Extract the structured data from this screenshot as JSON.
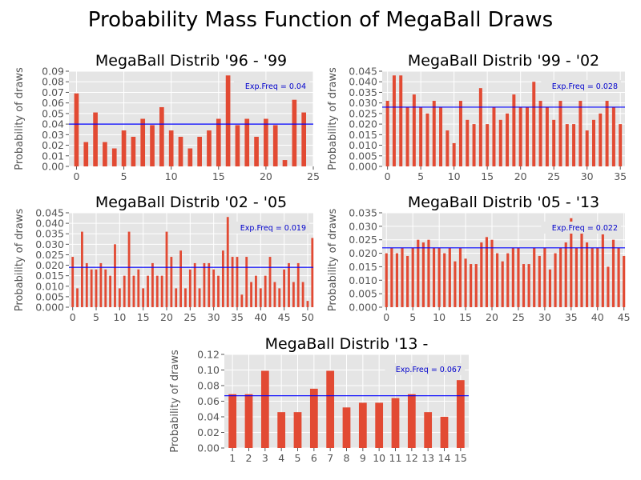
{
  "figure": {
    "title": "Probability Mass Function of MegaBall Draws"
  },
  "colors": {
    "bar": "#e24a33",
    "expected_line": "#0000ff",
    "background": "#e5e5e5",
    "grid": "#ffffff"
  },
  "chart_data": [
    {
      "type": "bar",
      "title": "MegaBall Distrib '96 - '99",
      "ylabel": "Probability of draws",
      "xlabel": "",
      "x": [
        0,
        1,
        2,
        3,
        4,
        5,
        6,
        7,
        8,
        9,
        10,
        11,
        12,
        13,
        14,
        15,
        16,
        17,
        18,
        19,
        20,
        21,
        22,
        23,
        24,
        25
      ],
      "values": [
        0.069,
        0.023,
        0.051,
        0.023,
        0.017,
        0.034,
        0.028,
        0.045,
        0.039,
        0.056,
        0.034,
        0.028,
        0.017,
        0.028,
        0.034,
        0.045,
        0.086,
        0.039,
        0.045,
        0.028,
        0.045,
        0.039,
        0.006,
        0.063,
        0.051,
        0
      ],
      "xlim": [
        -0.8,
        25
      ],
      "ylim": [
        0,
        0.09
      ],
      "xticks": [
        "0",
        "5",
        "10",
        "15",
        "20",
        "25"
      ],
      "xtick_values": [
        0,
        5,
        10,
        15,
        20,
        25
      ],
      "yticks": [
        "0.00",
        "0.01",
        "0.02",
        "0.03",
        "0.04",
        "0.05",
        "0.06",
        "0.07",
        "0.08",
        "0.09"
      ],
      "ytick_values": [
        0,
        0.01,
        0.02,
        0.03,
        0.04,
        0.05,
        0.06,
        0.07,
        0.08,
        0.09
      ],
      "expected": 0.04,
      "expected_label": "Exp.Freq = 0.04",
      "grid": true,
      "legend": "none"
    },
    {
      "type": "bar",
      "title": "MegaBall Distrib '99 - '02",
      "ylabel": "Probability of draws",
      "xlabel": "",
      "x": [
        0,
        1,
        2,
        3,
        4,
        5,
        6,
        7,
        8,
        9,
        10,
        11,
        12,
        13,
        14,
        15,
        16,
        17,
        18,
        19,
        20,
        21,
        22,
        23,
        24,
        25,
        26,
        27,
        28,
        29,
        30,
        31,
        32,
        33,
        34,
        35
      ],
      "values": [
        0.031,
        0.043,
        0.043,
        0.028,
        0.034,
        0.028,
        0.025,
        0.031,
        0.028,
        0.017,
        0.011,
        0.031,
        0.022,
        0.02,
        0.037,
        0.02,
        0.028,
        0.022,
        0.025,
        0.034,
        0.028,
        0.028,
        0.04,
        0.031,
        0.028,
        0.022,
        0.031,
        0.02,
        0.02,
        0.031,
        0.017,
        0.022,
        0.025,
        0.031,
        0.028,
        0.02
      ],
      "xlim": [
        -0.8,
        35.7
      ],
      "ylim": [
        0,
        0.045
      ],
      "xticks": [
        "0",
        "5",
        "10",
        "15",
        "20",
        "25",
        "30",
        "35"
      ],
      "xtick_values": [
        0,
        5,
        10,
        15,
        20,
        25,
        30,
        35
      ],
      "yticks": [
        "0.000",
        "0.005",
        "0.010",
        "0.015",
        "0.020",
        "0.025",
        "0.030",
        "0.035",
        "0.040",
        "0.045"
      ],
      "ytick_values": [
        0,
        0.005,
        0.01,
        0.015,
        0.02,
        0.025,
        0.03,
        0.035,
        0.04,
        0.045
      ],
      "expected": 0.028,
      "expected_label": "Exp.Freq = 0.028",
      "grid": true,
      "legend": "none"
    },
    {
      "type": "bar",
      "title": "MegaBall Distrib '02 - '05",
      "ylabel": "Probability of draws",
      "xlabel": "",
      "x": [
        0,
        1,
        2,
        3,
        4,
        5,
        6,
        7,
        8,
        9,
        10,
        11,
        12,
        13,
        14,
        15,
        16,
        17,
        18,
        19,
        20,
        21,
        22,
        23,
        24,
        25,
        26,
        27,
        28,
        29,
        30,
        31,
        32,
        33,
        34,
        35,
        36,
        37,
        38,
        39,
        40,
        41,
        42,
        43,
        44,
        45,
        46,
        47,
        48,
        49,
        50,
        51
      ],
      "values": [
        0.024,
        0.009,
        0.036,
        0.021,
        0.018,
        0.018,
        0.021,
        0.018,
        0.015,
        0.03,
        0.009,
        0.015,
        0.036,
        0.015,
        0.018,
        0.009,
        0.015,
        0.021,
        0.015,
        0.015,
        0.036,
        0.024,
        0.009,
        0.027,
        0.009,
        0.018,
        0.021,
        0.009,
        0.021,
        0.021,
        0.018,
        0.015,
        0.027,
        0.043,
        0.024,
        0.024,
        0.006,
        0.024,
        0.012,
        0.015,
        0.009,
        0.015,
        0.024,
        0.012,
        0.009,
        0.018,
        0.021,
        0.012,
        0.021,
        0.012,
        0.003,
        0.033
      ],
      "xlim": [
        -0.8,
        51.2
      ],
      "ylim": [
        0,
        0.045
      ],
      "xticks": [
        "0",
        "5",
        "10",
        "15",
        "20",
        "25",
        "30",
        "35",
        "40",
        "45",
        "50"
      ],
      "xtick_values": [
        0,
        5,
        10,
        15,
        20,
        25,
        30,
        35,
        40,
        45,
        50
      ],
      "yticks": [
        "0.000",
        "0.005",
        "0.010",
        "0.015",
        "0.020",
        "0.025",
        "0.030",
        "0.035",
        "0.040",
        "0.045"
      ],
      "ytick_values": [
        0,
        0.005,
        0.01,
        0.015,
        0.02,
        0.025,
        0.03,
        0.035,
        0.04,
        0.045
      ],
      "expected": 0.019,
      "expected_label": "Exp.Freq = 0.019",
      "grid": true,
      "legend": "none"
    },
    {
      "type": "bar",
      "title": "MegaBall Distrib '05 - '13",
      "ylabel": "Probability of draws",
      "xlabel": "",
      "x": [
        0,
        1,
        2,
        3,
        4,
        5,
        6,
        7,
        8,
        9,
        10,
        11,
        12,
        13,
        14,
        15,
        16,
        17,
        18,
        19,
        20,
        21,
        22,
        23,
        24,
        25,
        26,
        27,
        28,
        29,
        30,
        31,
        32,
        33,
        34,
        35,
        36,
        37,
        38,
        39,
        40,
        41,
        42,
        43,
        44,
        45
      ],
      "values": [
        0.02,
        0.022,
        0.02,
        0.022,
        0.019,
        0.022,
        0.025,
        0.024,
        0.025,
        0.022,
        0.022,
        0.02,
        0.022,
        0.017,
        0.022,
        0.018,
        0.016,
        0.016,
        0.024,
        0.026,
        0.025,
        0.02,
        0.017,
        0.02,
        0.022,
        0.022,
        0.016,
        0.016,
        0.022,
        0.019,
        0.022,
        0.014,
        0.02,
        0.022,
        0.024,
        0.033,
        0.022,
        0.028,
        0.024,
        0.022,
        0.022,
        0.027,
        0.015,
        0.025,
        0.022,
        0.019
      ],
      "xlim": [
        -0.8,
        45.2
      ],
      "ylim": [
        0,
        0.035
      ],
      "xticks": [
        "0",
        "5",
        "10",
        "15",
        "20",
        "25",
        "30",
        "35",
        "40",
        "45"
      ],
      "xtick_values": [
        0,
        5,
        10,
        15,
        20,
        25,
        30,
        35,
        40,
        45
      ],
      "yticks": [
        "0.000",
        "0.005",
        "0.010",
        "0.015",
        "0.020",
        "0.025",
        "0.030",
        "0.035"
      ],
      "ytick_values": [
        0,
        0.005,
        0.01,
        0.015,
        0.02,
        0.025,
        0.03,
        0.035
      ],
      "expected": 0.022,
      "expected_label": "Exp.Freq = 0.022",
      "grid": true,
      "legend": "none"
    },
    {
      "type": "bar",
      "title": "MegaBall Distrib '13 -",
      "ylabel": "Probability of draws",
      "xlabel": "",
      "x": [
        1,
        2,
        3,
        4,
        5,
        6,
        7,
        8,
        9,
        10,
        11,
        12,
        13,
        14,
        15
      ],
      "values": [
        0.069,
        0.069,
        0.099,
        0.046,
        0.046,
        0.076,
        0.099,
        0.052,
        0.058,
        0.058,
        0.064,
        0.069,
        0.046,
        0.04,
        0.087
      ],
      "xlim": [
        0.5,
        15.5
      ],
      "ylim": [
        0,
        0.12
      ],
      "xticks": [
        "1",
        "2",
        "3",
        "4",
        "5",
        "6",
        "7",
        "8",
        "9",
        "10",
        "11",
        "12",
        "13",
        "14",
        "15"
      ],
      "xtick_values": [
        1,
        2,
        3,
        4,
        5,
        6,
        7,
        8,
        9,
        10,
        11,
        12,
        13,
        14,
        15
      ],
      "yticks": [
        "0.00",
        "0.02",
        "0.04",
        "0.06",
        "0.08",
        "0.10",
        "0.12"
      ],
      "ytick_values": [
        0,
        0.02,
        0.04,
        0.06,
        0.08,
        0.1,
        0.12
      ],
      "expected": 0.067,
      "expected_label": "Exp.Freq = 0.067",
      "grid": true,
      "legend": "none"
    }
  ]
}
